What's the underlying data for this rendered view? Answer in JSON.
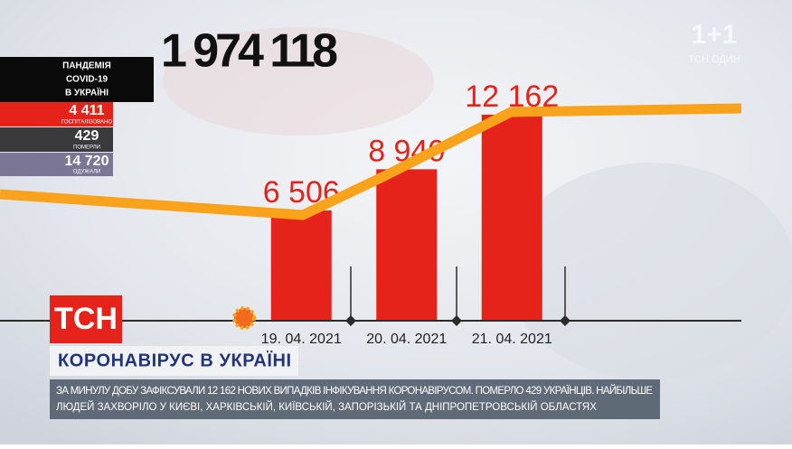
{
  "chart_data": {
    "type": "bar",
    "categories": [
      "19. 04. 2021",
      "20. 04. 2021",
      "21. 04. 2021"
    ],
    "values": [
      6506,
      8940,
      12162
    ],
    "value_labels": [
      "6 506",
      "8 940",
      "12 162"
    ],
    "color": "#e5231b",
    "ylim": [
      0,
      18000
    ]
  },
  "total": "1 974 118",
  "stats": {
    "title_lines": [
      "ПАНДЕМІЯ",
      "COVID-19",
      "В УКРАЇНІ"
    ],
    "items": [
      {
        "value": "4 411",
        "label": "ГОСПІТАЛІЗОВАНО"
      },
      {
        "value": "429",
        "label": "ПОМЕРЛИ"
      },
      {
        "value": "14 720",
        "label": "ОДУЖАЛИ"
      }
    ]
  },
  "channel": {
    "logo": "1+1",
    "sub": "ТСН ОДИН"
  },
  "program_logo": "ТСН",
  "headline": "КОРОНАВІРУС В УКРАЇНІ",
  "ticker": [
    "ЗА МИНУЛУ ДОБУ ЗАФІКСУВАЛИ 12 162 НОВИХ ВИПАДКІВ ІНФІКУВАННЯ КОРОНАВІРУСОМ. ПОМЕРЛО 429 УКРАЇНЦІВ. НАЙБІЛЬШЕ",
    "ЛЮДЕЙ ЗАХВОРІЛО У КИЄВІ, ХАРКІВСЬКІЙ, КИЇВСЬКІЙ, ЗАПОРІЗЬКІЙ ТА ДНІПРОПЕТРОВСЬКІЙ ОБЛАСТЯХ"
  ]
}
